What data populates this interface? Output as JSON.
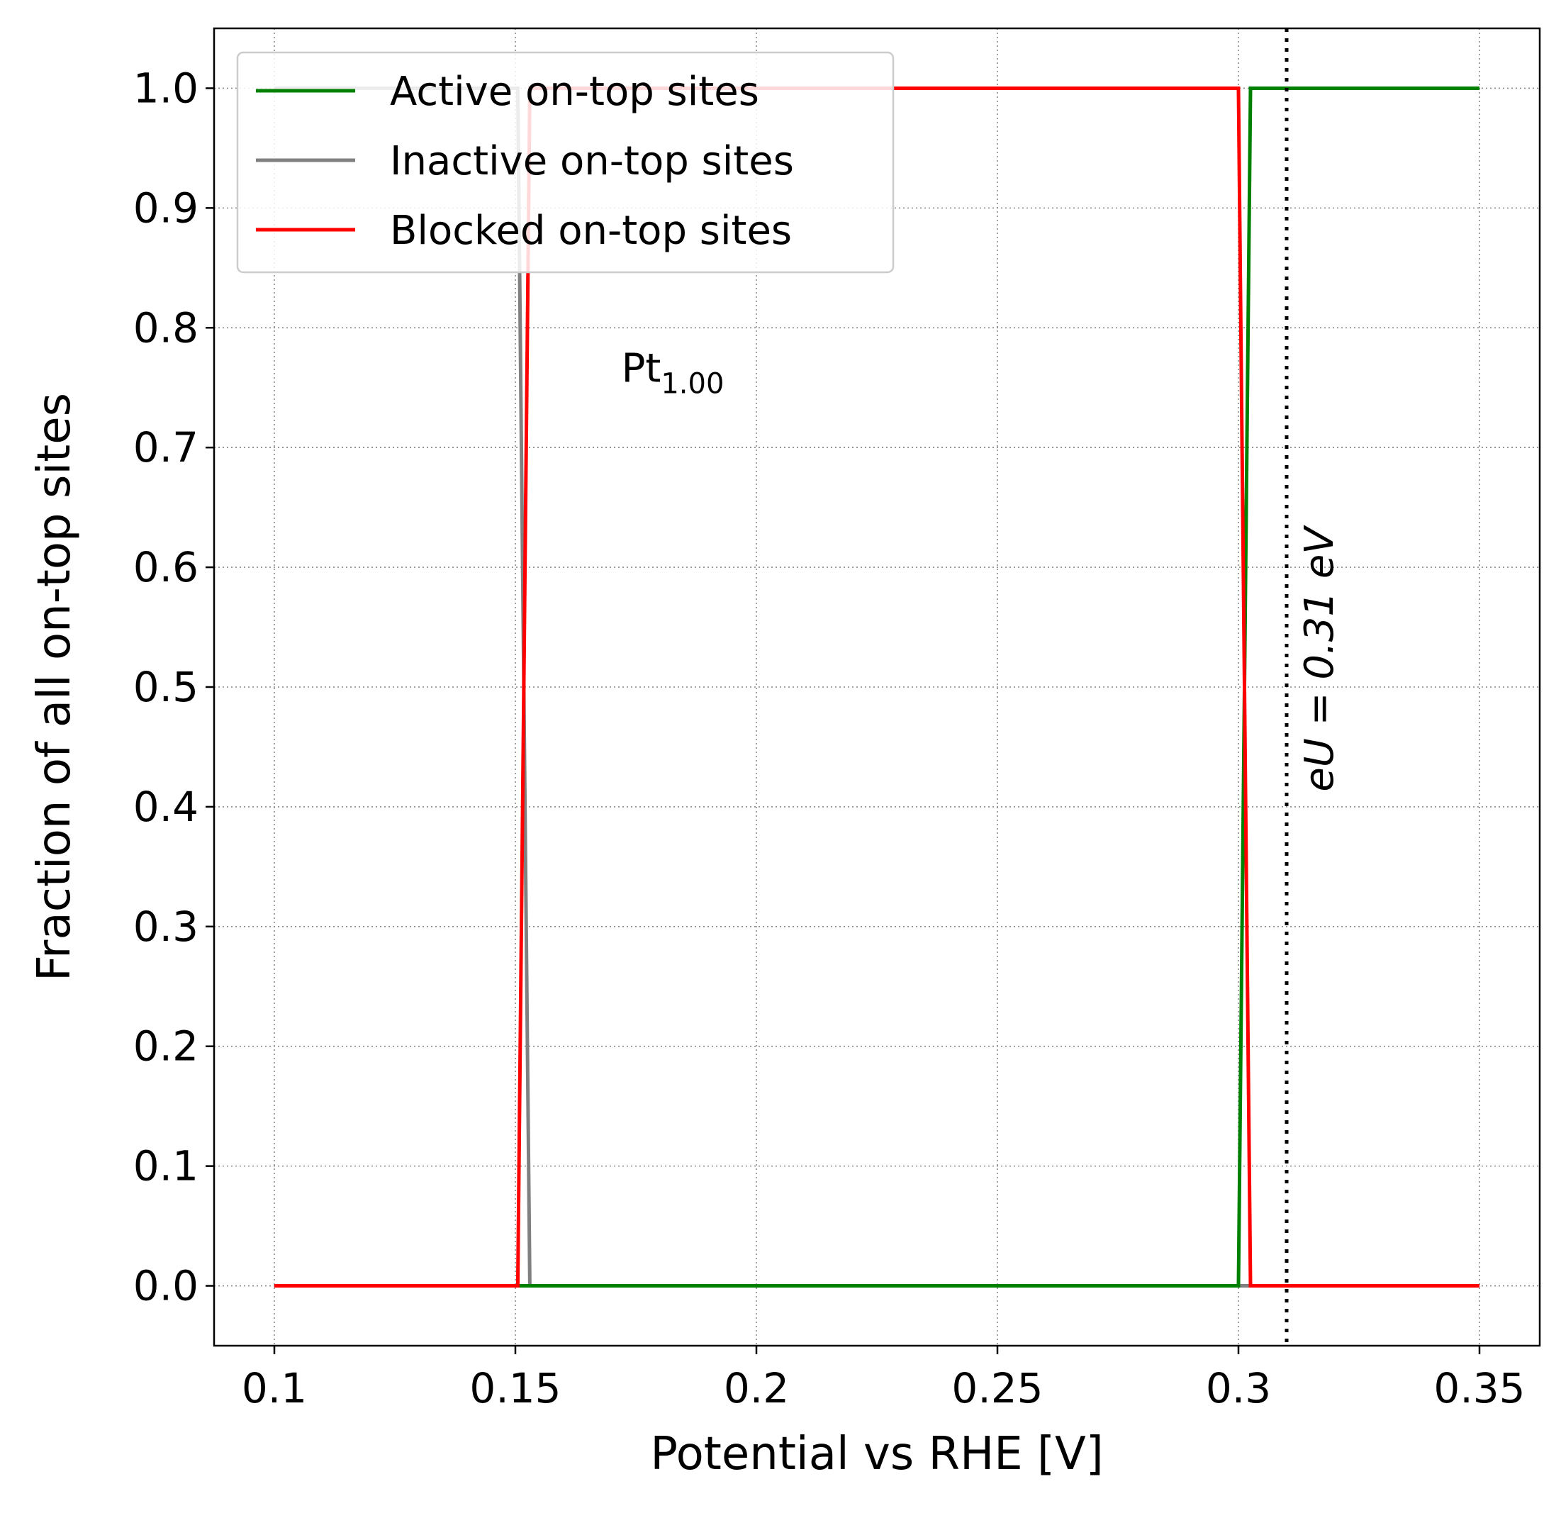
{
  "chart_data": {
    "type": "line",
    "xlabel": "Potential vs RHE [V]",
    "ylabel": "Fraction of all on-top sites",
    "xlim": [
      0.0875,
      0.3625
    ],
    "ylim": [
      -0.05,
      1.05
    ],
    "xticks": [
      0.1,
      0.15,
      0.2,
      0.25,
      0.3,
      0.35
    ],
    "xtick_labels": [
      "0.1",
      "0.15",
      "0.2",
      "0.25",
      "0.3",
      "0.35"
    ],
    "yticks": [
      0.0,
      0.1,
      0.2,
      0.3,
      0.4,
      0.5,
      0.6,
      0.7,
      0.8,
      0.9,
      1.0
    ],
    "ytick_labels": [
      "0.0",
      "0.1",
      "0.2",
      "0.3",
      "0.4",
      "0.5",
      "0.6",
      "0.7",
      "0.8",
      "0.9",
      "1.0"
    ],
    "grid": true,
    "legend_position": "upper-left",
    "series": [
      {
        "name": "Active on-top sites",
        "color": "#008000",
        "x": [
          0.1,
          0.3,
          0.3025,
          0.35
        ],
        "y": [
          0.0,
          0.0,
          1.0,
          1.0
        ]
      },
      {
        "name": "Inactive on-top sites",
        "color": "#808080",
        "x": [
          0.1,
          0.1505,
          0.153,
          0.3,
          0.35
        ],
        "y": [
          1.0,
          1.0,
          0.0,
          0.0,
          0.0
        ]
      },
      {
        "name": "Blocked on-top sites",
        "color": "#ff0000",
        "x": [
          0.1,
          0.1505,
          0.153,
          0.3,
          0.3025,
          0.35
        ],
        "y": [
          0.0,
          0.0,
          1.0,
          1.0,
          0.0,
          0.0
        ]
      }
    ],
    "vline": {
      "x": 0.31,
      "style": "dotted",
      "color": "#000000",
      "label": "eU = 0.31 eV"
    },
    "annotation": {
      "text": "Pt",
      "subscript": "1.00",
      "x": 0.172,
      "y": 0.755
    }
  }
}
